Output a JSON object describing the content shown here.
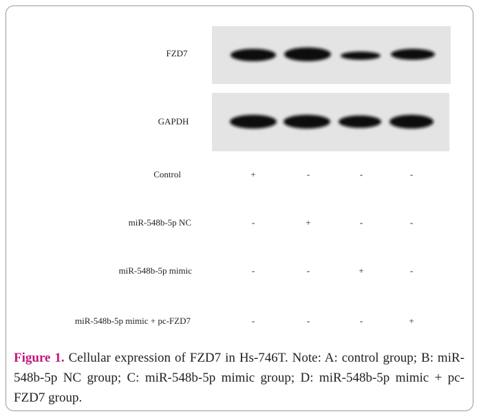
{
  "blot": {
    "proteins": [
      "FZD7",
      "GAPDH"
    ]
  },
  "treatments": [
    {
      "label": "Control",
      "signs": [
        "+",
        "-",
        "-",
        "-"
      ]
    },
    {
      "label": "miR-548b-5p NC",
      "signs": [
        "-",
        "+",
        "-",
        "-"
      ]
    },
    {
      "label": "miR-548b-5p mimic",
      "signs": [
        "-",
        "-",
        "+",
        "-"
      ]
    },
    {
      "label": "miR-548b-5p mimic + pc-FZD7",
      "signs": [
        "-",
        "-",
        "-",
        "+"
      ]
    }
  ],
  "caption": {
    "label": "Figure 1.",
    "text": "Cellular expression of FZD7 in Hs-746T. Note: A: control group; B: miR-548b-5p NC group; C: miR-548b-5p mimic group; D: miR-548b-5p mimic + pc-FZD7 group."
  }
}
